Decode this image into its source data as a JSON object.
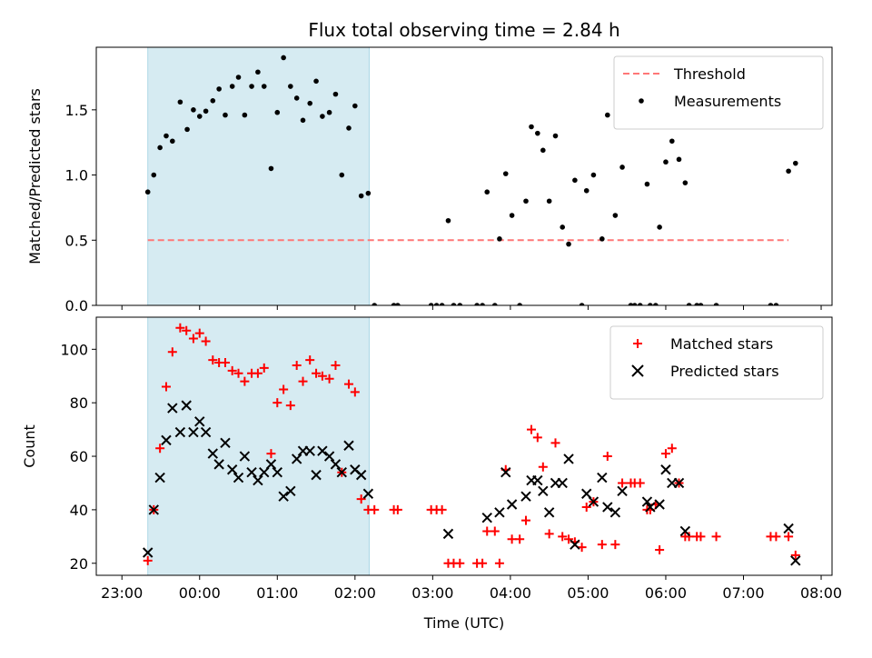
{
  "chart_data": {
    "type": "scatter",
    "title": "Flux total observing time = 2.84 h",
    "xlabel": "Time (UTC)",
    "x_ticks": [
      "23:00",
      "00:00",
      "01:00",
      "02:00",
      "03:00",
      "04:00",
      "05:00",
      "06:00",
      "07:00",
      "08:00"
    ],
    "x_tick_hours": [
      -1,
      0,
      1,
      2,
      3,
      4,
      5,
      6,
      7,
      8
    ],
    "xlim_hours": [
      -1.33,
      8.14
    ],
    "shaded_interval_hours": [
      -0.667,
      2.183
    ],
    "shade_color": "#add8e6",
    "panels": [
      {
        "ylabel": "Matched/Predicted stars",
        "ylim": [
          0,
          1.98
        ],
        "y_ticks": [
          "0.0",
          "0.5",
          "1.0",
          "1.5"
        ],
        "y_tick_values": [
          0,
          0.5,
          1.0,
          1.5
        ],
        "legend": [
          "Threshold",
          "Measurements"
        ],
        "legend_position": "upper right",
        "threshold": {
          "name": "Threshold",
          "value": 0.5,
          "x_range_hours": [
            -0.667,
            7.58
          ],
          "color": "#ff7777",
          "style": "dashed"
        },
        "series": [
          {
            "name": "Measurements",
            "marker": "dot",
            "color": "#000000",
            "points": [
              [
                -0.667,
                0.87
              ],
              [
                -0.59,
                1.0
              ],
              [
                -0.51,
                1.21
              ],
              [
                -0.43,
                1.3
              ],
              [
                -0.35,
                1.26
              ],
              [
                -0.25,
                1.56
              ],
              [
                -0.16,
                1.35
              ],
              [
                -0.08,
                1.5
              ],
              [
                0.0,
                1.45
              ],
              [
                0.08,
                1.49
              ],
              [
                0.17,
                1.57
              ],
              [
                0.25,
                1.66
              ],
              [
                0.33,
                1.46
              ],
              [
                0.42,
                1.68
              ],
              [
                0.5,
                1.75
              ],
              [
                0.58,
                1.46
              ],
              [
                0.67,
                1.68
              ],
              [
                0.75,
                1.79
              ],
              [
                0.83,
                1.68
              ],
              [
                0.92,
                1.05
              ],
              [
                1.0,
                1.48
              ],
              [
                1.08,
                1.9
              ],
              [
                1.17,
                1.68
              ],
              [
                1.25,
                1.59
              ],
              [
                1.33,
                1.42
              ],
              [
                1.42,
                1.55
              ],
              [
                1.5,
                1.72
              ],
              [
                1.58,
                1.45
              ],
              [
                1.67,
                1.48
              ],
              [
                1.75,
                1.62
              ],
              [
                1.83,
                1.0
              ],
              [
                1.92,
                1.36
              ],
              [
                2.0,
                1.53
              ],
              [
                2.08,
                0.84
              ],
              [
                2.17,
                0.86
              ],
              [
                2.25,
                0.0
              ],
              [
                2.5,
                0.0
              ],
              [
                2.55,
                0.0
              ],
              [
                2.98,
                0.0
              ],
              [
                3.05,
                0.0
              ],
              [
                3.12,
                0.0
              ],
              [
                3.2,
                0.65
              ],
              [
                3.27,
                0.0
              ],
              [
                3.35,
                0.0
              ],
              [
                3.57,
                0.0
              ],
              [
                3.64,
                0.0
              ],
              [
                3.7,
                0.87
              ],
              [
                3.8,
                0.0
              ],
              [
                3.86,
                0.51
              ],
              [
                3.94,
                1.01
              ],
              [
                4.02,
                0.69
              ],
              [
                4.12,
                0.0
              ],
              [
                4.2,
                0.8
              ],
              [
                4.27,
                1.37
              ],
              [
                4.35,
                1.32
              ],
              [
                4.42,
                1.19
              ],
              [
                4.5,
                0.8
              ],
              [
                4.58,
                1.3
              ],
              [
                4.67,
                0.6
              ],
              [
                4.75,
                0.47
              ],
              [
                4.83,
                0.96
              ],
              [
                4.92,
                0.0
              ],
              [
                4.98,
                0.88
              ],
              [
                5.07,
                1.0
              ],
              [
                5.18,
                0.51
              ],
              [
                5.25,
                1.46
              ],
              [
                5.35,
                0.69
              ],
              [
                5.44,
                1.06
              ],
              [
                5.55,
                0.0
              ],
              [
                5.6,
                0.0
              ],
              [
                5.67,
                0.0
              ],
              [
                5.76,
                0.93
              ],
              [
                5.8,
                0.0
              ],
              [
                5.87,
                0.0
              ],
              [
                5.92,
                0.6
              ],
              [
                6.0,
                1.1
              ],
              [
                6.08,
                1.26
              ],
              [
                6.17,
                1.12
              ],
              [
                6.25,
                0.94
              ],
              [
                6.3,
                0.0
              ],
              [
                6.4,
                0.0
              ],
              [
                6.45,
                0.0
              ],
              [
                6.65,
                0.0
              ],
              [
                7.35,
                0.0
              ],
              [
                7.42,
                0.0
              ],
              [
                7.58,
                1.03
              ],
              [
                7.67,
                1.09
              ]
            ]
          }
        ]
      },
      {
        "ylabel": "Count",
        "ylim": [
          15.5,
          112
        ],
        "y_ticks": [
          "20",
          "40",
          "60",
          "80",
          "100"
        ],
        "y_tick_values": [
          20,
          40,
          60,
          80,
          100
        ],
        "legend": [
          "Matched stars",
          "Predicted stars"
        ],
        "legend_position": "upper right",
        "series": [
          {
            "name": "Matched stars",
            "marker": "plus",
            "color": "#ff0000",
            "points": [
              [
                -0.667,
                21
              ],
              [
                -0.59,
                40
              ],
              [
                -0.51,
                63
              ],
              [
                -0.43,
                86
              ],
              [
                -0.35,
                99
              ],
              [
                -0.25,
                108
              ],
              [
                -0.17,
                107
              ],
              [
                -0.08,
                104
              ],
              [
                0.0,
                106
              ],
              [
                0.08,
                103
              ],
              [
                0.17,
                96
              ],
              [
                0.25,
                95
              ],
              [
                0.33,
                95
              ],
              [
                0.42,
                92
              ],
              [
                0.5,
                91
              ],
              [
                0.58,
                88
              ],
              [
                0.67,
                91
              ],
              [
                0.75,
                91
              ],
              [
                0.83,
                93
              ],
              [
                0.92,
                61
              ],
              [
                1.0,
                80
              ],
              [
                1.08,
                85
              ],
              [
                1.17,
                79
              ],
              [
                1.25,
                94
              ],
              [
                1.33,
                88
              ],
              [
                1.42,
                96
              ],
              [
                1.5,
                91
              ],
              [
                1.58,
                90
              ],
              [
                1.67,
                89
              ],
              [
                1.75,
                94
              ],
              [
                1.83,
                54
              ],
              [
                1.92,
                87
              ],
              [
                2.0,
                84
              ],
              [
                2.08,
                44
              ],
              [
                2.17,
                40
              ],
              [
                2.25,
                40
              ],
              [
                2.5,
                40
              ],
              [
                2.55,
                40
              ],
              [
                2.98,
                40
              ],
              [
                3.05,
                40
              ],
              [
                3.12,
                40
              ],
              [
                3.2,
                20
              ],
              [
                3.27,
                20
              ],
              [
                3.35,
                20
              ],
              [
                3.57,
                20
              ],
              [
                3.64,
                20
              ],
              [
                3.7,
                32
              ],
              [
                3.8,
                32
              ],
              [
                3.86,
                20
              ],
              [
                3.94,
                55
              ],
              [
                4.02,
                29
              ],
              [
                4.12,
                29
              ],
              [
                4.2,
                36
              ],
              [
                4.27,
                70
              ],
              [
                4.35,
                67
              ],
              [
                4.42,
                56
              ],
              [
                4.5,
                31
              ],
              [
                4.58,
                65
              ],
              [
                4.67,
                30
              ],
              [
                4.75,
                29
              ],
              [
                4.83,
                28
              ],
              [
                4.92,
                26
              ],
              [
                4.98,
                41
              ],
              [
                5.07,
                43
              ],
              [
                5.18,
                27
              ],
              [
                5.25,
                60
              ],
              [
                5.35,
                27
              ],
              [
                5.44,
                50
              ],
              [
                5.55,
                50
              ],
              [
                5.6,
                50
              ],
              [
                5.67,
                50
              ],
              [
                5.76,
                40
              ],
              [
                5.8,
                40
              ],
              [
                5.87,
                42
              ],
              [
                5.92,
                25
              ],
              [
                6.0,
                61
              ],
              [
                6.08,
                63
              ],
              [
                6.17,
                50
              ],
              [
                6.25,
                30
              ],
              [
                6.3,
                30
              ],
              [
                6.4,
                30
              ],
              [
                6.45,
                30
              ],
              [
                6.65,
                30
              ],
              [
                7.35,
                30
              ],
              [
                7.42,
                30
              ],
              [
                7.58,
                30
              ],
              [
                7.67,
                23
              ]
            ]
          },
          {
            "name": "Predicted stars",
            "marker": "x",
            "color": "#000000",
            "points": [
              [
                -0.667,
                24
              ],
              [
                -0.59,
                40
              ],
              [
                -0.51,
                52
              ],
              [
                -0.43,
                66
              ],
              [
                -0.35,
                78
              ],
              [
                -0.25,
                69
              ],
              [
                -0.17,
                79
              ],
              [
                -0.08,
                69
              ],
              [
                0.0,
                73
              ],
              [
                0.08,
                69
              ],
              [
                0.17,
                61
              ],
              [
                0.25,
                57
              ],
              [
                0.33,
                65
              ],
              [
                0.42,
                55
              ],
              [
                0.5,
                52
              ],
              [
                0.58,
                60
              ],
              [
                0.67,
                54
              ],
              [
                0.75,
                51
              ],
              [
                0.83,
                54
              ],
              [
                0.92,
                57
              ],
              [
                1.0,
                54
              ],
              [
                1.08,
                45
              ],
              [
                1.17,
                47
              ],
              [
                1.25,
                59
              ],
              [
                1.33,
                62
              ],
              [
                1.42,
                62
              ],
              [
                1.5,
                53
              ],
              [
                1.58,
                62
              ],
              [
                1.67,
                60
              ],
              [
                1.75,
                57
              ],
              [
                1.83,
                54
              ],
              [
                1.92,
                64
              ],
              [
                2.0,
                55
              ],
              [
                2.08,
                53
              ],
              [
                2.17,
                46
              ],
              [
                3.2,
                31
              ],
              [
                3.7,
                37
              ],
              [
                3.86,
                39
              ],
              [
                3.94,
                54
              ],
              [
                4.02,
                42
              ],
              [
                4.2,
                45
              ],
              [
                4.27,
                51
              ],
              [
                4.35,
                51
              ],
              [
                4.42,
                47
              ],
              [
                4.5,
                39
              ],
              [
                4.58,
                50
              ],
              [
                4.67,
                50
              ],
              [
                4.75,
                59
              ],
              [
                4.83,
                27
              ],
              [
                4.98,
                46
              ],
              [
                5.07,
                43
              ],
              [
                5.18,
                52
              ],
              [
                5.25,
                41
              ],
              [
                5.35,
                39
              ],
              [
                5.44,
                47
              ],
              [
                5.76,
                43
              ],
              [
                5.8,
                41
              ],
              [
                5.92,
                42
              ],
              [
                6.0,
                55
              ],
              [
                6.08,
                50
              ],
              [
                6.17,
                50
              ],
              [
                6.25,
                32
              ],
              [
                7.58,
                33
              ],
              [
                7.67,
                21
              ]
            ]
          }
        ]
      }
    ]
  }
}
